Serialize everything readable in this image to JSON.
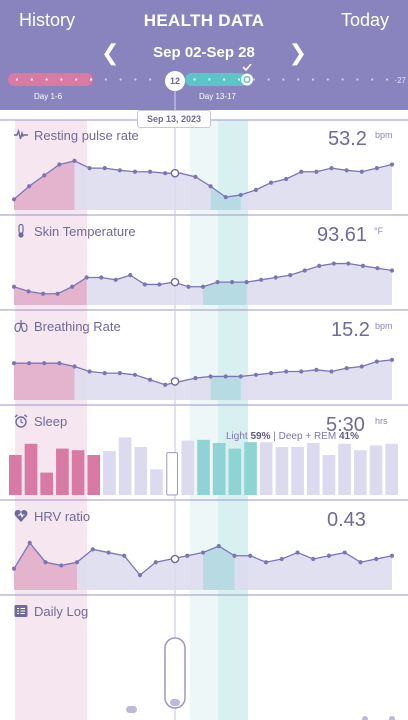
{
  "header": {
    "left_button": "History",
    "title": "HEALTH DATA",
    "right_button": "Today",
    "date_range": "Sep 02-Sep 28",
    "prev_icon": "chevron-left-icon",
    "next_icon": "chevron-right-icon",
    "timeline": {
      "selected_day": "12",
      "end_day": "27",
      "range_label_1": "Day 1-6",
      "range_label_2": "Day 13-17",
      "check_icon": "check-icon"
    }
  },
  "selected_date": "Sep 13, 2023",
  "colors": {
    "header_bg": "#8a84be",
    "pink_range": "#d87aa4",
    "teal_range": "#5cc5c8",
    "line": "#7b76b3",
    "fill": "#dcdaee"
  },
  "panels": [
    {
      "name": "resting-pulse-rate",
      "title": "Resting pulse rate",
      "icon": "pulse-icon",
      "value": "53.2",
      "unit": "bpm",
      "chart_data": {
        "type": "line",
        "x_label_note": "",
        "values": [
          49.2,
          51,
          52.5,
          54,
          54.5,
          53.5,
          53.5,
          53.2,
          53,
          53,
          52.8,
          52.8,
          52.3,
          51,
          49.5,
          49.8,
          50.5,
          51.5,
          52,
          53,
          53,
          53.5,
          53.2,
          53,
          53.5,
          54
        ],
        "pink_values": [
          49.2,
          50.5,
          52.8,
          52.7
        ],
        "ylim": [
          48,
          56
        ]
      }
    },
    {
      "name": "skin-temperature",
      "title": "Skin Temperature",
      "icon": "thermometer-icon",
      "value": "93.61",
      "unit": "°F",
      "chart_data": {
        "type": "line",
        "values": [
          93.2,
          93.0,
          92.9,
          92.9,
          93.2,
          93.6,
          93.6,
          93.5,
          93.7,
          93.3,
          93.3,
          93.4,
          93.2,
          93.2,
          93.4,
          93.4,
          93.4,
          93.5,
          93.6,
          93.7,
          93.9,
          94.1,
          94.2,
          94.2,
          94.1,
          94.0,
          93.9
        ],
        "ylim": [
          92.5,
          95
        ]
      }
    },
    {
      "name": "breathing-rate",
      "title": "Breathing Rate",
      "icon": "lungs-icon",
      "value": "15.2",
      "unit": "bpm",
      "chart_data": {
        "type": "line",
        "values": [
          15.1,
          15.1,
          15.1,
          15.1,
          14.9,
          14.6,
          14.5,
          14.5,
          14.4,
          14.1,
          13.8,
          14.0,
          14.2,
          14.3,
          14.3,
          14.3,
          14.4,
          14.5,
          14.6,
          14.6,
          14.7,
          14.6,
          14.8,
          14.9,
          15.2,
          15.3
        ],
        "ylim": [
          13,
          16.5
        ]
      }
    },
    {
      "name": "sleep",
      "title": "Sleep",
      "icon": "alarm-clock-icon",
      "value": "5:30",
      "unit": "hrs",
      "sub_light_label": "Light",
      "sub_light_value": "59%",
      "sub_sep": "| Deep + REM",
      "sub_deep_value": "41%",
      "chart_data": {
        "type": "bar",
        "values": [
          5.0,
          6.4,
          2.8,
          5.8,
          5.6,
          5.0,
          5.5,
          7.2,
          6.0,
          3.2,
          5.3,
          6.8,
          6.9,
          6.5,
          5.8,
          6.6,
          6.6,
          6.0,
          6.0,
          6.5,
          5.0,
          6.4,
          5.6,
          6.2,
          6.4
        ],
        "ylim": [
          0,
          8
        ]
      }
    },
    {
      "name": "hrv-ratio",
      "title": "HRV ratio",
      "icon": "heart-icon",
      "value": "0.43",
      "unit": "",
      "chart_data": {
        "type": "line",
        "values": [
          0.38,
          0.46,
          0.4,
          0.39,
          0.4,
          0.44,
          0.43,
          0.42,
          0.36,
          0.4,
          0.41,
          0.42,
          0.43,
          0.45,
          0.42,
          0.42,
          0.4,
          0.41,
          0.43,
          0.41,
          0.42,
          0.43,
          0.4,
          0.41,
          0.42
        ],
        "ylim": [
          0.32,
          0.5
        ]
      }
    },
    {
      "name": "daily-log",
      "title": "Daily Log",
      "icon": "checklist-icon",
      "value": "",
      "unit": ""
    }
  ]
}
